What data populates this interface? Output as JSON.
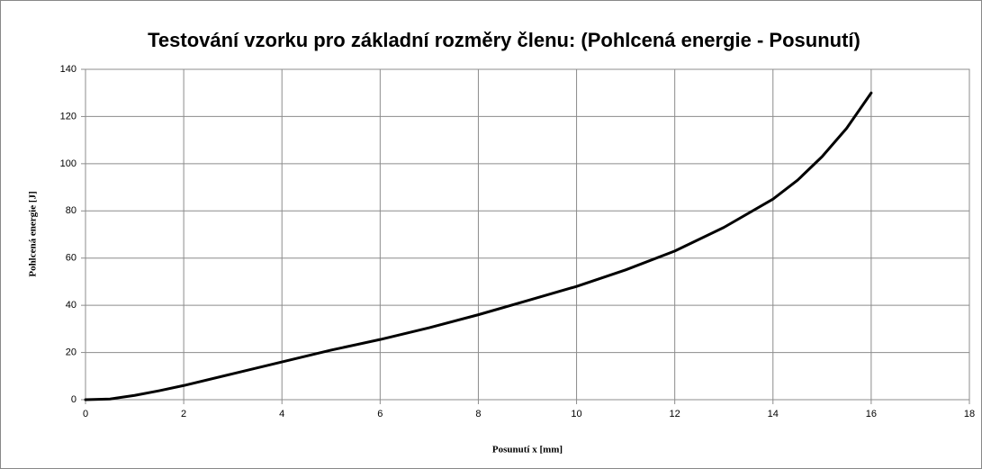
{
  "chart_data": {
    "type": "line",
    "title": "Testování vzorku pro základní rozměry členu: (Pohlcená energie - Posunutí)",
    "x_label": "Posunutí x [mm]",
    "y_label": "Pohlcená energie [J]",
    "x": [
      0,
      0.5,
      1,
      1.5,
      2,
      3,
      4,
      5,
      6,
      7,
      8,
      9,
      10,
      11,
      12,
      13,
      14,
      14.5,
      15,
      15.5,
      16
    ],
    "series": [
      {
        "color": "#000000",
        "values": [
          0,
          0.3,
          1.8,
          3.8,
          6,
          11,
          16,
          21,
          25.5,
          30.5,
          36,
          42,
          48,
          55,
          63,
          73,
          85,
          93,
          103,
          115,
          130
        ]
      }
    ],
    "xlim": [
      0,
      18
    ],
    "xticks": [
      0,
      2,
      4,
      6,
      8,
      10,
      12,
      14,
      16,
      18
    ],
    "ylim": [
      0,
      140
    ],
    "yticks": [
      0,
      20,
      40,
      60,
      80,
      100,
      120,
      140
    ],
    "grid": true
  }
}
